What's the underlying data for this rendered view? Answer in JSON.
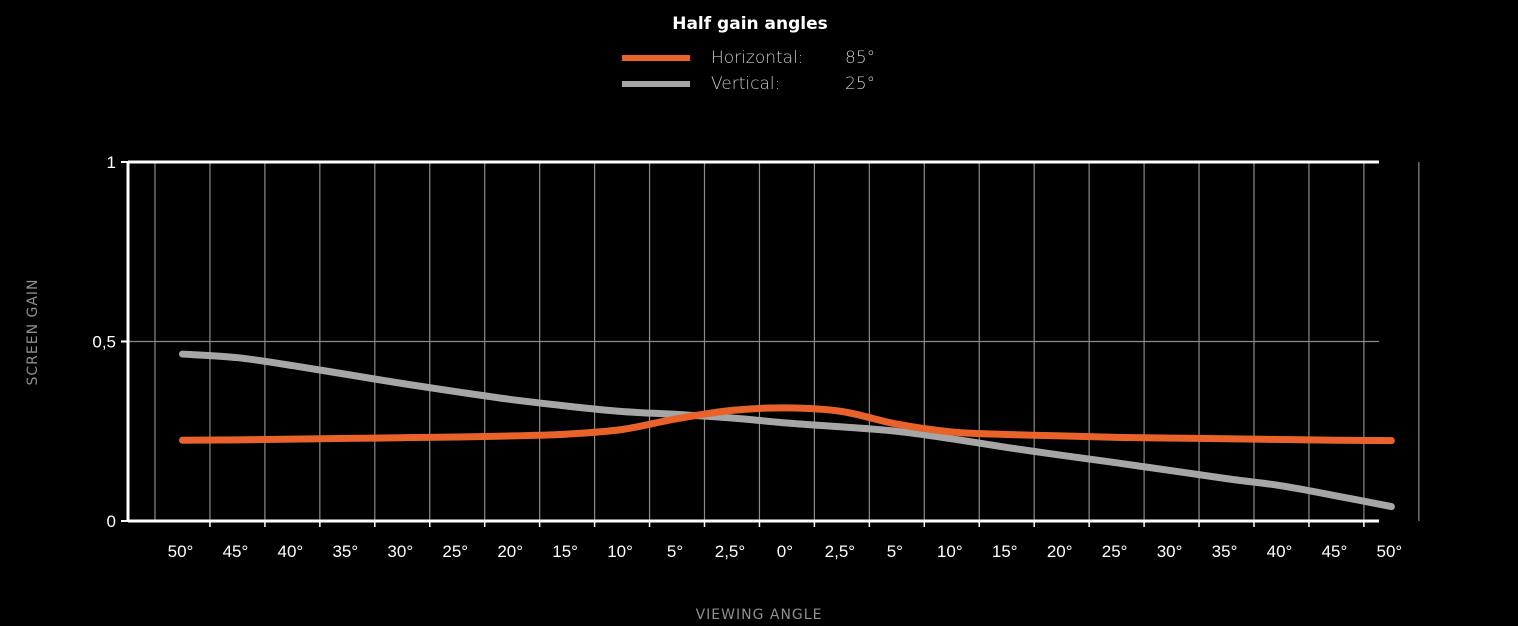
{
  "chart_data": {
    "type": "line",
    "title": "Half gain angles",
    "xlabel": "VIEWING ANGLE",
    "ylabel": "SCREEN GAIN",
    "categories": [
      "50°",
      "45°",
      "40°",
      "35°",
      "30°",
      "25°",
      "20°",
      "15°",
      "10°",
      "5°",
      "2,5°",
      "0°",
      "2,5°",
      "5°",
      "10°",
      "15°",
      "20°",
      "25°",
      "30°",
      "35°",
      "40°",
      "45°",
      "50°"
    ],
    "y_ticks": [
      "0",
      "0,5",
      "1"
    ],
    "y_tick_values": [
      0,
      0.5,
      1
    ],
    "ylim": [
      0,
      1
    ],
    "grid": true,
    "legend_placement": "top-center",
    "series": [
      {
        "name": "Horizontal:",
        "half_gain_angle": "85°",
        "color": "#e8622a",
        "values": [
          0.225,
          0.226,
          0.228,
          0.23,
          0.232,
          0.234,
          0.237,
          0.242,
          0.255,
          0.285,
          0.308,
          0.315,
          0.305,
          0.27,
          0.248,
          0.241,
          0.237,
          0.233,
          0.231,
          0.229,
          0.227,
          0.225,
          0.224
        ]
      },
      {
        "name": "Vertical:",
        "half_gain_angle": "25°",
        "color": "#a6a6a6",
        "values": [
          0.465,
          0.455,
          0.433,
          0.408,
          0.383,
          0.36,
          0.338,
          0.32,
          0.305,
          0.297,
          0.287,
          0.273,
          0.262,
          0.25,
          0.229,
          0.205,
          0.183,
          0.162,
          0.14,
          0.118,
          0.098,
          0.07,
          0.04
        ]
      }
    ]
  }
}
